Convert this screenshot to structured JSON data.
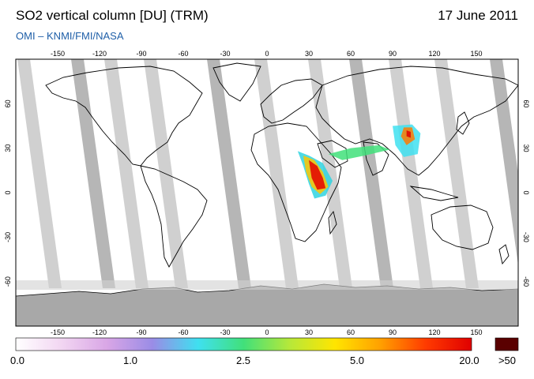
{
  "header": {
    "title": "SO2 vertical column [DU] (TRM)",
    "date": "17 June 2011",
    "credit": "OMI  –  KNMI/FMI/NASA"
  },
  "map": {
    "lon_ticks": [
      "-150",
      "-120",
      "-90",
      "-60",
      "-30",
      "0",
      "30",
      "60",
      "90",
      "120",
      "150"
    ],
    "lat_ticks": [
      "60",
      "30",
      "0",
      "-30",
      "-60"
    ],
    "lon_range": [
      -180,
      180
    ],
    "lat_range": [
      -90,
      90
    ],
    "no_data_color": "#c8c8c8",
    "hotspots": [
      {
        "region": "Nabro volcano plume, East Africa / Red Sea",
        "lon": 38,
        "lat": 5,
        "level": "high"
      },
      {
        "region": "Plume over Arabia / Middle East",
        "lon": 55,
        "lat": 25,
        "level": "moderate"
      },
      {
        "region": "Plume over East China",
        "lon": 105,
        "lat": 32,
        "level": "moderate"
      }
    ]
  },
  "colorbar": {
    "labels": [
      "0.0",
      "1.0",
      "2.5",
      "5.0",
      "20.0"
    ],
    "overflow_label": ">50",
    "overflow_color": "#5a0000",
    "stops": [
      "#ffffff",
      "#f2d6f2",
      "#d9a6e6",
      "#9a8ce6",
      "#3fe0f0",
      "#41e07a",
      "#b6e83a",
      "#ffe500",
      "#ffa000",
      "#ff3a00",
      "#e00000"
    ]
  }
}
